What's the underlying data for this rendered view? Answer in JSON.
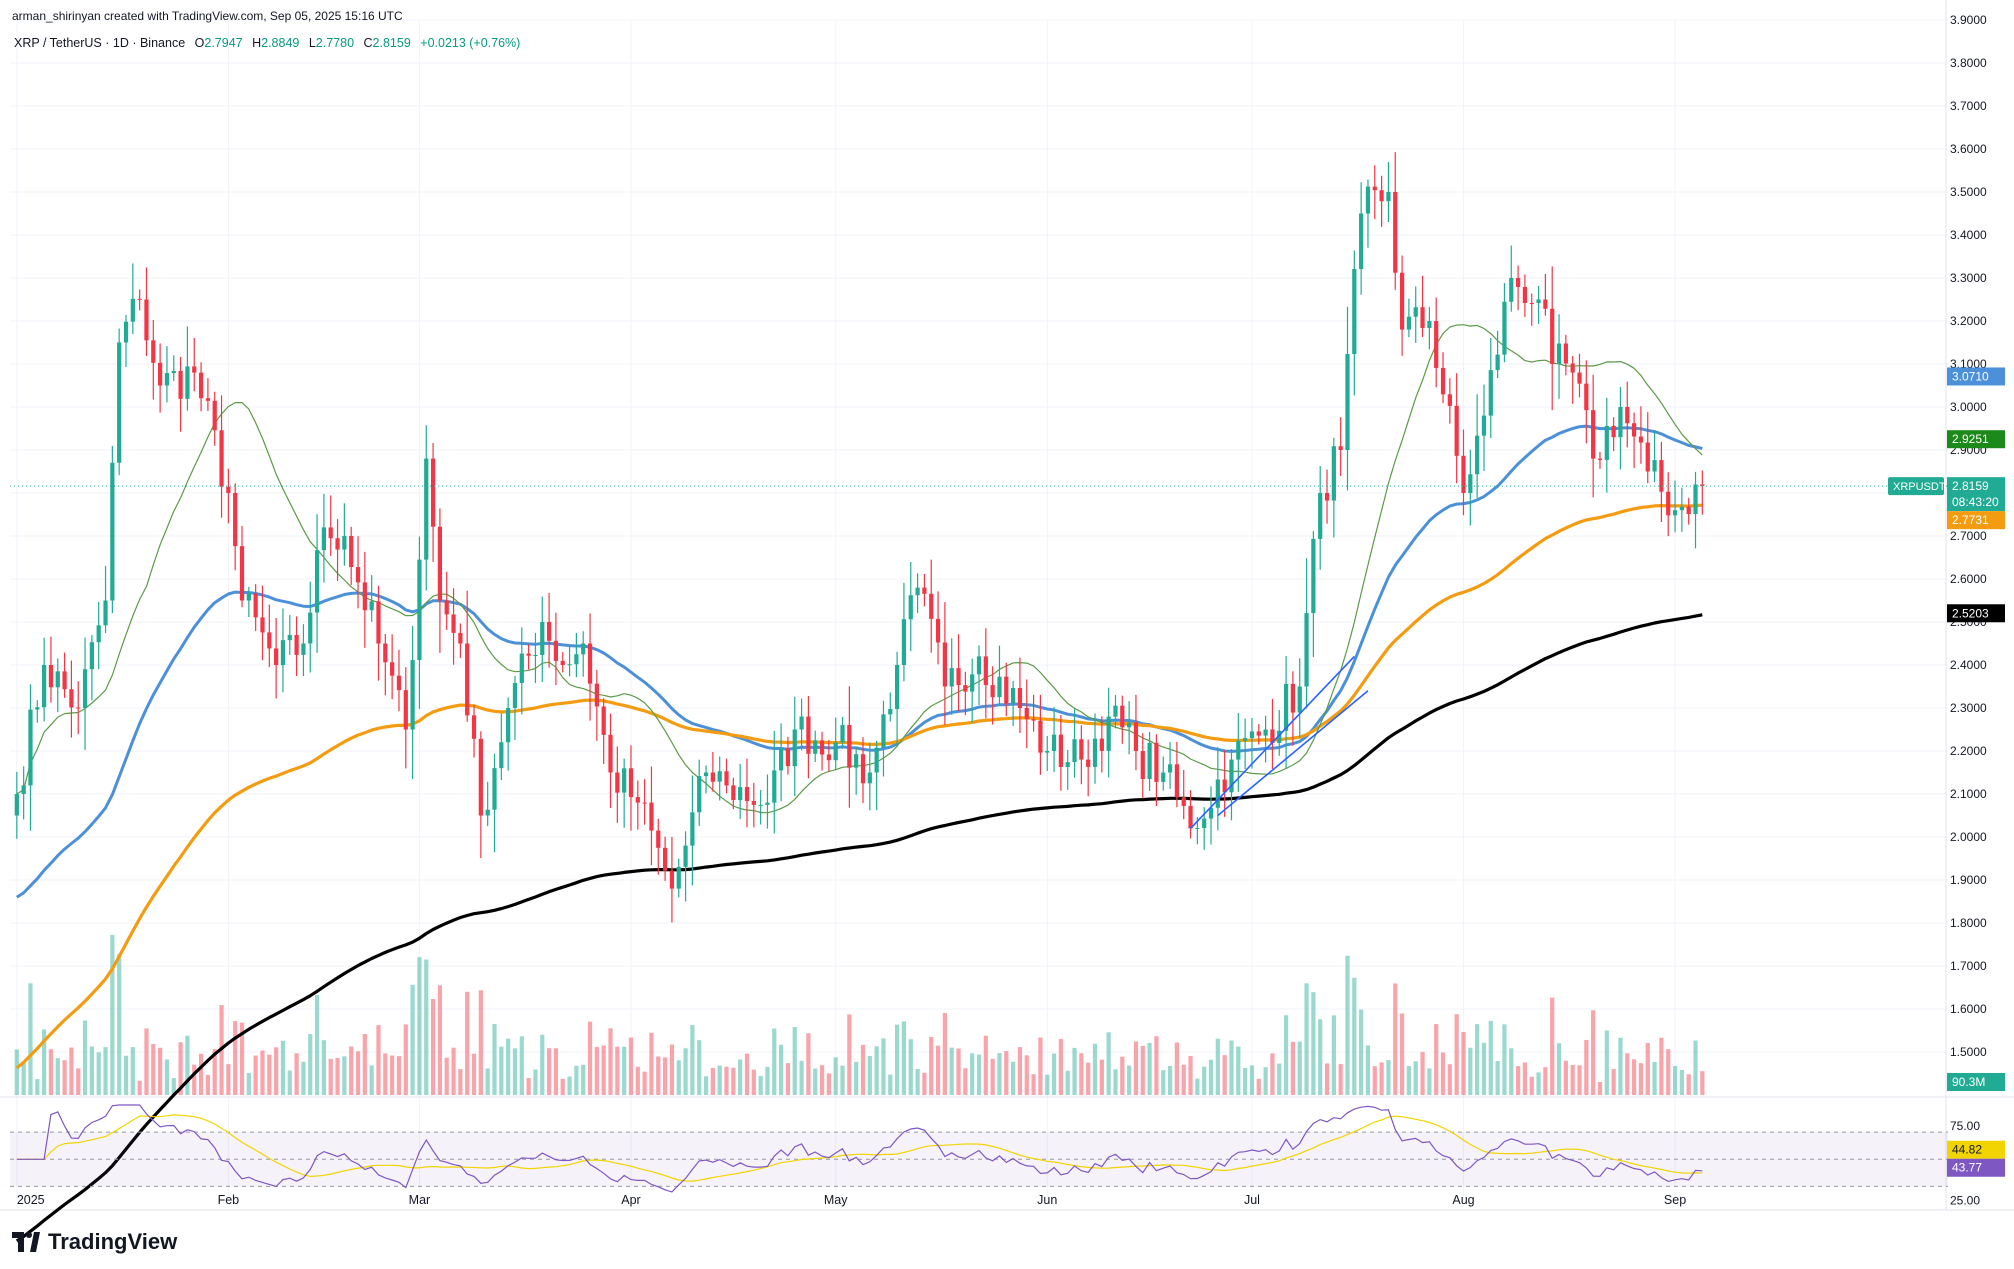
{
  "header": {
    "attribution": "arman_shirinyan created with TradingView.com, Sep 05, 2025 15:16 UTC",
    "symbol": "XRP / TetherUS · 1D · Binance",
    "open_label": "O",
    "open": "2.7947",
    "high_label": "H",
    "high": "2.8849",
    "low_label": "L",
    "low": "2.7780",
    "close_label": "C",
    "close": "2.8159",
    "change": "+0.0213 (+0.76%)"
  },
  "brand": "TradingView",
  "colors": {
    "up": "#22ab94",
    "down": "#f23645",
    "ema_fast": "#4c90d9",
    "ema_mid": "#f39c12",
    "ema_slow": "#000000",
    "sma_short": "#5b9a47",
    "rsi": "#7e57c2"
  },
  "chart_data": {
    "type": "candlestick",
    "xlabel": "",
    "ylabel": "",
    "ylim": [
      1.4,
      3.9
    ],
    "x_tick_labels": [
      "2025",
      "Feb",
      "Mar",
      "Apr",
      "May",
      "Jun",
      "Jul",
      "Aug",
      "Sep"
    ],
    "x_tick_dates": [
      "2025-01-01",
      "2025-02-01",
      "2025-03-01",
      "2025-04-01",
      "2025-05-01",
      "2025-06-01",
      "2025-07-01",
      "2025-08-01",
      "2025-09-01"
    ],
    "y_ticks": [
      "1.5000",
      "1.6000",
      "1.7000",
      "1.8000",
      "1.9000",
      "2.0000",
      "2.1000",
      "2.2000",
      "2.3000",
      "2.4000",
      "2.5000",
      "2.6000",
      "2.7000",
      "2.8000",
      "2.9000",
      "3.0000",
      "3.1000",
      "3.2000",
      "3.3000",
      "3.4000",
      "3.5000",
      "3.6000",
      "3.7000",
      "3.8000",
      "3.9000"
    ],
    "price_labels": [
      {
        "name": "ema-blue",
        "value": "3.0710",
        "color": "#4c90d9"
      },
      {
        "name": "sma-green",
        "value": "2.9251",
        "color": "#1b8a1b"
      },
      {
        "name": "last-price",
        "text": "XRPUSDT",
        "value": "2.8159",
        "countdown": "08:43:20",
        "color": "#22ab94"
      },
      {
        "name": "ema-orange",
        "value": "2.7731",
        "color": "#f39c12"
      },
      {
        "name": "ema-black",
        "value": "2.5203",
        "color": "#000000"
      },
      {
        "name": "volume",
        "value": "90.3M",
        "color": "#22ab94"
      }
    ],
    "anchors": [
      {
        "date": "2025-01-01",
        "price": 2.1
      },
      {
        "date": "2025-01-05",
        "price": 2.4
      },
      {
        "date": "2025-01-10",
        "price": 2.3
      },
      {
        "date": "2025-01-14",
        "price": 2.55
      },
      {
        "date": "2025-01-16",
        "price": 3.15
      },
      {
        "date": "2025-01-19",
        "price": 3.25
      },
      {
        "date": "2025-01-22",
        "price": 3.05
      },
      {
        "date": "2025-01-27",
        "price": 3.08
      },
      {
        "date": "2025-02-01",
        "price": 2.8
      },
      {
        "date": "2025-02-03",
        "price": 2.55
      },
      {
        "date": "2025-02-08",
        "price": 2.4
      },
      {
        "date": "2025-02-12",
        "price": 2.45
      },
      {
        "date": "2025-02-15",
        "price": 2.72
      },
      {
        "date": "2025-02-18",
        "price": 2.7
      },
      {
        "date": "2025-02-23",
        "price": 2.45
      },
      {
        "date": "2025-02-27",
        "price": 2.25
      },
      {
        "date": "2025-03-02",
        "price": 2.88
      },
      {
        "date": "2025-03-04",
        "price": 2.55
      },
      {
        "date": "2025-03-07",
        "price": 2.45
      },
      {
        "date": "2025-03-10",
        "price": 2.05
      },
      {
        "date": "2025-03-14",
        "price": 2.3
      },
      {
        "date": "2025-03-19",
        "price": 2.5
      },
      {
        "date": "2025-03-22",
        "price": 2.4
      },
      {
        "date": "2025-03-25",
        "price": 2.45
      },
      {
        "date": "2025-03-29",
        "price": 2.15
      },
      {
        "date": "2025-04-02",
        "price": 2.08
      },
      {
        "date": "2025-04-07",
        "price": 1.88
      },
      {
        "date": "2025-04-09",
        "price": 1.98
      },
      {
        "date": "2025-04-12",
        "price": 2.15
      },
      {
        "date": "2025-04-15",
        "price": 2.12
      },
      {
        "date": "2025-04-21",
        "price": 2.08
      },
      {
        "date": "2025-04-25",
        "price": 2.25
      },
      {
        "date": "2025-05-01",
        "price": 2.22
      },
      {
        "date": "2025-05-06",
        "price": 2.15
      },
      {
        "date": "2025-05-10",
        "price": 2.4
      },
      {
        "date": "2025-05-13",
        "price": 2.58
      },
      {
        "date": "2025-05-17",
        "price": 2.35
      },
      {
        "date": "2025-05-22",
        "price": 2.42
      },
      {
        "date": "2025-05-28",
        "price": 2.3
      },
      {
        "date": "2025-06-01",
        "price": 2.2
      },
      {
        "date": "2025-06-06",
        "price": 2.18
      },
      {
        "date": "2025-06-10",
        "price": 2.28
      },
      {
        "date": "2025-06-14",
        "price": 2.2
      },
      {
        "date": "2025-06-18",
        "price": 2.15
      },
      {
        "date": "2025-06-22",
        "price": 2.02
      },
      {
        "date": "2025-06-28",
        "price": 2.18
      },
      {
        "date": "2025-07-03",
        "price": 2.25
      },
      {
        "date": "2025-07-08",
        "price": 2.35
      },
      {
        "date": "2025-07-11",
        "price": 2.8
      },
      {
        "date": "2025-07-14",
        "price": 2.9
      },
      {
        "date": "2025-07-17",
        "price": 3.45
      },
      {
        "date": "2025-07-21",
        "price": 3.5
      },
      {
        "date": "2025-07-23",
        "price": 3.18
      },
      {
        "date": "2025-07-27",
        "price": 3.2
      },
      {
        "date": "2025-08-01",
        "price": 2.8
      },
      {
        "date": "2025-08-04",
        "price": 2.98
      },
      {
        "date": "2025-08-08",
        "price": 3.3
      },
      {
        "date": "2025-08-12",
        "price": 3.25
      },
      {
        "date": "2025-08-14",
        "price": 3.1
      },
      {
        "date": "2025-08-17",
        "price": 3.08
      },
      {
        "date": "2025-08-20",
        "price": 2.88
      },
      {
        "date": "2025-08-24",
        "price": 3.0
      },
      {
        "date": "2025-08-28",
        "price": 2.85
      },
      {
        "date": "2025-09-01",
        "price": 2.76
      },
      {
        "date": "2025-09-05",
        "price": 2.8159
      }
    ],
    "last_date": "2025-09-05",
    "trendlines": [
      {
        "from": {
          "date": "2025-06-22",
          "price": 2.02
        },
        "to": {
          "date": "2025-07-16",
          "price": 2.42
        }
      },
      {
        "from": {
          "date": "2025-06-26",
          "price": 2.05
        },
        "to": {
          "date": "2025-07-18",
          "price": 2.34
        }
      }
    ],
    "moving_averages": [
      {
        "name": "ema-blue",
        "period": 50,
        "color": "#4c90d9",
        "width": 3
      },
      {
        "name": "ema-orange",
        "period": 100,
        "color": "#f39c12",
        "width": 3.2
      },
      {
        "name": "ema-black",
        "period": 200,
        "color": "#000000",
        "width": 3.2
      },
      {
        "name": "sma-green",
        "period": 20,
        "color": "#5b9a47",
        "width": 1.2
      }
    ],
    "rsi": {
      "ticks": [
        "75.00",
        "25.00"
      ],
      "upper": 70,
      "lower": 30,
      "ylim": [
        20,
        90
      ],
      "value": "43.77",
      "signal": "44.82",
      "value_color": "#7e57c2",
      "signal_color": "#f2d400"
    }
  }
}
